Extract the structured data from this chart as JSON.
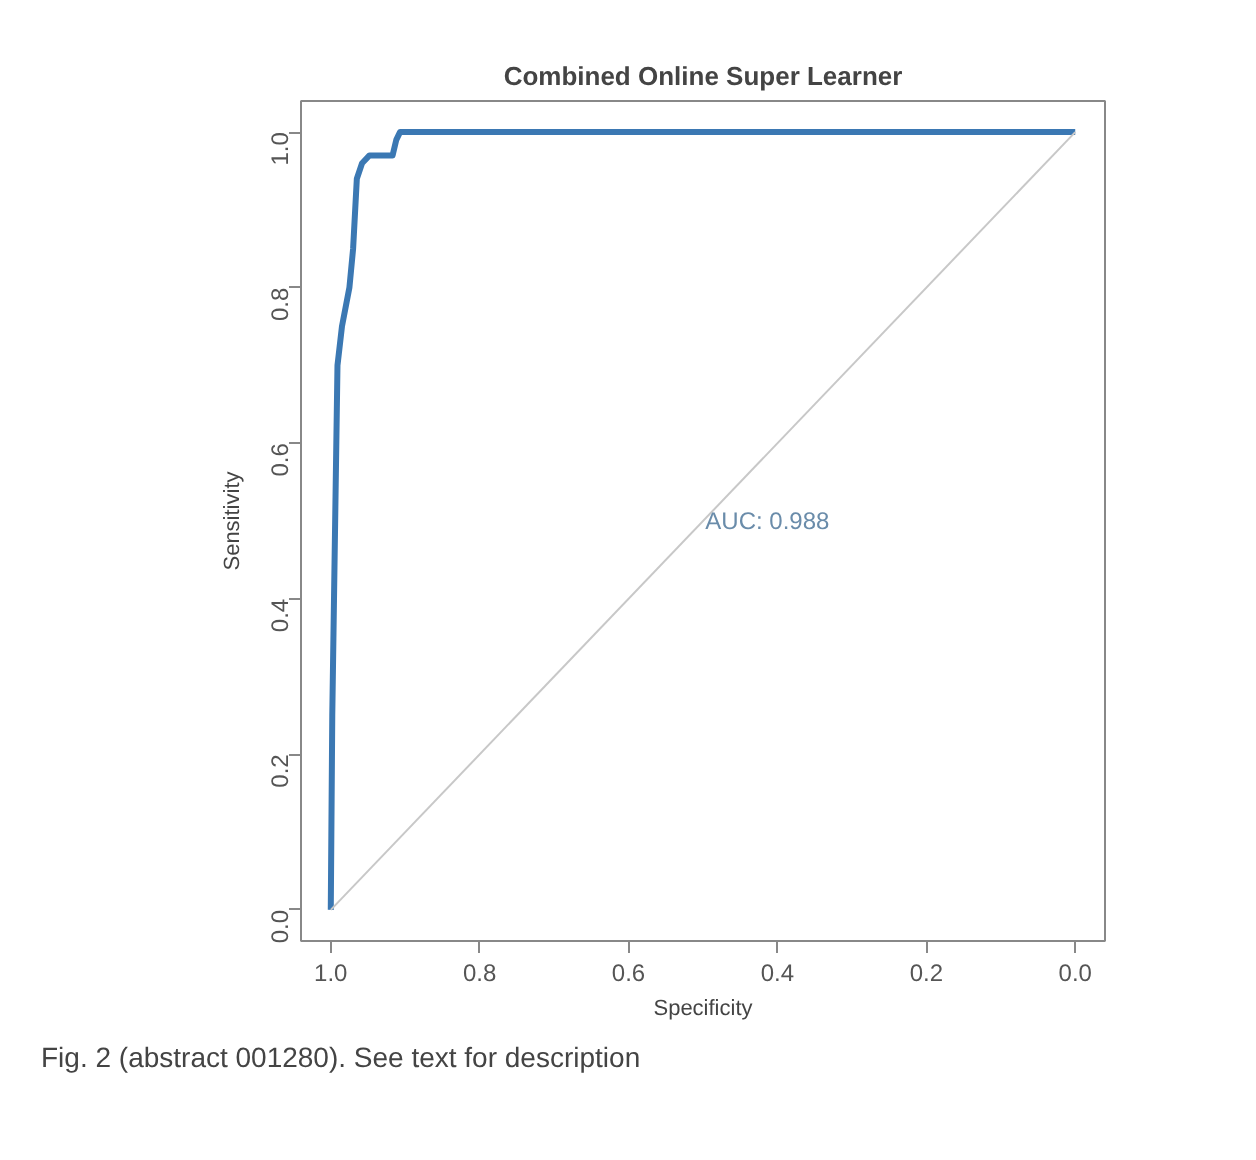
{
  "chart_data": {
    "type": "line",
    "title": "Combined Online Super Learner",
    "xlabel": "Specificity",
    "ylabel": "Sensitivity",
    "series": [
      {
        "color": "#3b78b3",
        "x": [
          1.0,
          0.998,
          0.991,
          0.985,
          0.975,
          0.97,
          0.965,
          0.958,
          0.948,
          0.93,
          0.917,
          0.912,
          0.907,
          0.0
        ],
        "values": [
          0.0,
          0.25,
          0.7,
          0.75,
          0.8,
          0.85,
          0.94,
          0.96,
          0.97,
          0.97,
          0.97,
          0.99,
          1.0,
          1.0
        ]
      },
      {
        "color": "#c8c8c8",
        "x": [
          1.0,
          0.0
        ],
        "values": [
          0.0,
          1.0
        ]
      }
    ],
    "xlim": [
      1.04,
      -0.04
    ],
    "ylim": [
      -0.04,
      1.04
    ],
    "xticks": [
      {
        "value": 1.0,
        "label": "1.0"
      },
      0.8,
      0.6,
      0.4,
      0.2,
      {
        "value": 0.0,
        "label": "0.0"
      }
    ],
    "yticks": [
      {
        "value": 0.0,
        "label": "0.0"
      },
      0.2,
      0.4,
      0.6,
      0.8,
      {
        "value": 1.0,
        "label": "1.0"
      }
    ],
    "grid": false,
    "annotations": [
      "AUC: 0.988",
      "Fig. 2 (abstract 001280). See text for description"
    ]
  }
}
